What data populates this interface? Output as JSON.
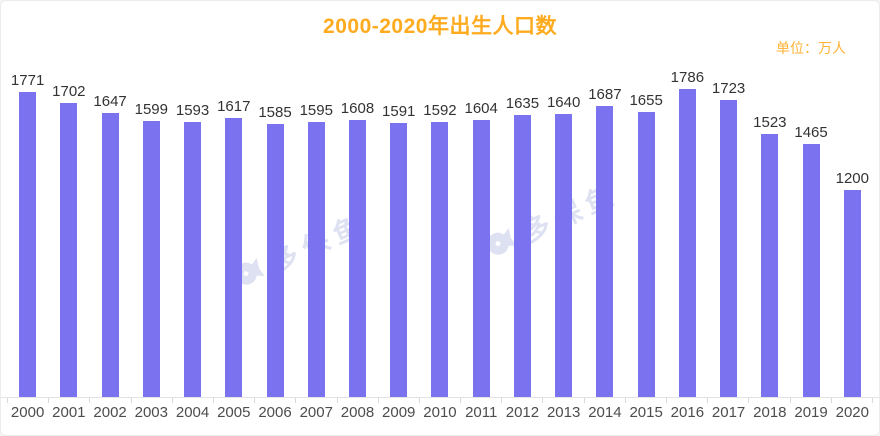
{
  "title": "2000-2020年出生人口数",
  "unit_label": "单位：万人",
  "watermark": {
    "text": "多保鱼"
  },
  "colors": {
    "bar": "#7B72F0",
    "title": "#FFAB1F",
    "unit": "#FFB338",
    "value_label": "#333333",
    "axis_label": "#4D4D4D",
    "axis_line": "#E3E3E6",
    "watermark": "#D8DCEF"
  },
  "chart_data": {
    "type": "bar",
    "title": "2000-2020年出生人口数",
    "unit": "万人",
    "categories": [
      "2000",
      "2001",
      "2002",
      "2003",
      "2004",
      "2005",
      "2006",
      "2007",
      "2008",
      "2009",
      "2010",
      "2011",
      "2012",
      "2013",
      "2014",
      "2015",
      "2016",
      "2017",
      "2018",
      "2019",
      "2020"
    ],
    "values": [
      1771,
      1702,
      1647,
      1599,
      1593,
      1617,
      1585,
      1595,
      1608,
      1591,
      1592,
      1604,
      1635,
      1640,
      1687,
      1655,
      1786,
      1723,
      1523,
      1465,
      1200
    ],
    "series_name": "出生人口数",
    "xlabel": "",
    "ylabel": "",
    "ylim": [
      0,
      1850
    ],
    "grid": false,
    "legend": false,
    "value_labels": true
  }
}
